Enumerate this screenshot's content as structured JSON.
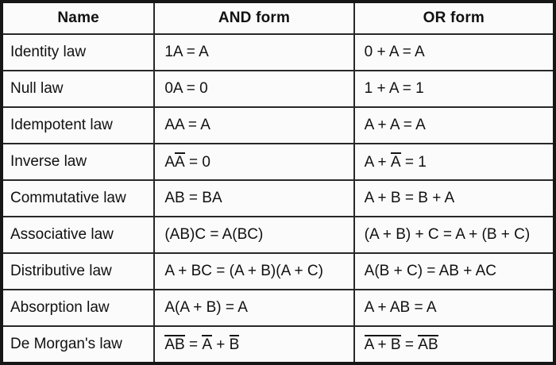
{
  "table": {
    "headers": [
      "Name",
      "AND form",
      "OR form"
    ],
    "rows": [
      {
        "name": "Identity law",
        "and": [
          {
            "t": "1A = A"
          }
        ],
        "or": [
          {
            "t": "0 + A = A"
          }
        ]
      },
      {
        "name": "Null law",
        "and": [
          {
            "t": "0A = 0"
          }
        ],
        "or": [
          {
            "t": "1 + A = 1"
          }
        ]
      },
      {
        "name": "Idempotent law",
        "and": [
          {
            "t": "AA = A"
          }
        ],
        "or": [
          {
            "t": "A + A = A"
          }
        ]
      },
      {
        "name": "Inverse law",
        "and": [
          {
            "t": "A"
          },
          {
            "t": "A",
            "ov": true
          },
          {
            "t": " = 0"
          }
        ],
        "or": [
          {
            "t": "A + "
          },
          {
            "t": "A",
            "ov": true
          },
          {
            "t": " = 1"
          }
        ]
      },
      {
        "name": "Commutative law",
        "and": [
          {
            "t": "AB = BA"
          }
        ],
        "or": [
          {
            "t": "A + B = B + A"
          }
        ]
      },
      {
        "name": "Associative law",
        "and": [
          {
            "t": "(AB)C = A(BC)"
          }
        ],
        "or": [
          {
            "t": "(A + B) + C = A + (B + C)"
          }
        ]
      },
      {
        "name": "Distributive law",
        "and": [
          {
            "t": "A + BC = (A + B)(A + C)"
          }
        ],
        "or": [
          {
            "t": "A(B + C) = AB + AC"
          }
        ]
      },
      {
        "name": "Absorption law",
        "and": [
          {
            "t": "A(A + B) = A"
          }
        ],
        "or": [
          {
            "t": "A + AB = A"
          }
        ]
      },
      {
        "name": "De Morgan's law",
        "and": [
          {
            "t": "AB",
            "ov": true
          },
          {
            "t": " = "
          },
          {
            "t": "A",
            "ov": true
          },
          {
            "t": " + "
          },
          {
            "t": "B",
            "ov": true
          }
        ],
        "or": [
          {
            "t": "A + B",
            "ov": true
          },
          {
            "t": " = "
          },
          {
            "t": "A",
            "ov": true
          },
          {
            "t": "B",
            "ov": true
          }
        ]
      }
    ]
  }
}
